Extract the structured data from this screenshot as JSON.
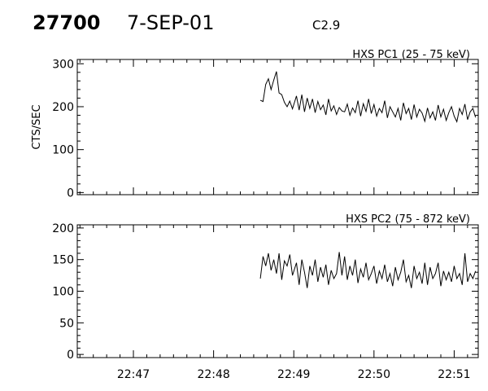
{
  "header": {
    "event_id": "27700",
    "date": "7-SEP-01",
    "flare_class": "C2.9"
  },
  "chart_data": [
    {
      "type": "line",
      "title": "HXS PC1 (25 - 75 keV)",
      "ylabel": "CTS/SEC",
      "xlabel": "",
      "xlim": [
        "22:46:18",
        "22:51:18"
      ],
      "ylim": [
        -5,
        310
      ],
      "yticks": [
        0,
        100,
        200,
        300
      ],
      "xticks": [
        "22:47",
        "22:48",
        "22:49",
        "22:50",
        "22:51"
      ],
      "grid": false,
      "series": [
        {
          "x": [
            "22:48:35",
            "22:48:37",
            "22:48:39",
            "22:48:41",
            "22:48:43",
            "22:48:45",
            "22:48:47",
            "22:48:49",
            "22:48:51",
            "22:48:53",
            "22:48:55",
            "22:48:57",
            "22:48:59",
            "22:49:02",
            "22:49:04",
            "22:49:06",
            "22:49:08",
            "22:49:10",
            "22:49:12",
            "22:49:14",
            "22:49:16",
            "22:49:18",
            "22:49:20",
            "22:49:22",
            "22:49:24",
            "22:49:26",
            "22:49:28",
            "22:49:30",
            "22:49:32",
            "22:49:34",
            "22:49:36",
            "22:49:38",
            "22:49:40",
            "22:49:42",
            "22:49:44",
            "22:49:46",
            "22:49:48",
            "22:49:50",
            "22:49:52",
            "22:49:54",
            "22:49:56",
            "22:49:58",
            "22:50:00",
            "22:50:02",
            "22:50:04",
            "22:50:06",
            "22:50:08",
            "22:50:10",
            "22:50:12",
            "22:50:14",
            "22:50:16",
            "22:50:18",
            "22:50:20",
            "22:50:22",
            "22:50:24",
            "22:50:26",
            "22:50:28",
            "22:50:30",
            "22:50:32",
            "22:50:34",
            "22:50:36",
            "22:50:38",
            "22:50:40",
            "22:50:42",
            "22:50:44",
            "22:50:46",
            "22:50:48",
            "22:50:50",
            "22:50:52",
            "22:50:54",
            "22:50:56",
            "22:50:58",
            "22:51:00",
            "22:51:02",
            "22:51:04",
            "22:51:06",
            "22:51:08",
            "22:51:10",
            "22:51:12",
            "22:51:14",
            "22:51:16"
          ],
          "values": [
            215,
            212,
            252,
            265,
            240,
            262,
            282,
            232,
            228,
            210,
            200,
            213,
            195,
            225,
            192,
            228,
            188,
            220,
            196,
            218,
            186,
            212,
            193,
            204,
            181,
            218,
            190,
            202,
            182,
            198,
            190,
            188,
            206,
            180,
            197,
            186,
            214,
            178,
            207,
            189,
            218,
            184,
            205,
            178,
            196,
            186,
            214,
            174,
            200,
            188,
            176,
            196,
            168,
            209,
            184,
            196,
            170,
            205,
            176,
            194,
            185,
            166,
            197,
            174,
            188,
            168,
            204,
            176,
            194,
            168,
            186,
            200,
            178,
            165,
            196,
            182,
            206,
            170,
            188,
            196,
            175
          ]
        }
      ]
    },
    {
      "type": "line",
      "title": "HXS PC2 (75 - 872 keV)",
      "ylabel": "",
      "xlabel": "",
      "xlim": [
        "22:46:18",
        "22:51:18"
      ],
      "ylim": [
        -5,
        205
      ],
      "yticks": [
        0,
        50,
        100,
        150,
        200
      ],
      "xticks": [
        "22:47",
        "22:48",
        "22:49",
        "22:50",
        "22:51"
      ],
      "grid": false,
      "series": [
        {
          "x": [
            "22:48:35",
            "22:48:37",
            "22:48:39",
            "22:48:41",
            "22:48:43",
            "22:48:45",
            "22:48:47",
            "22:48:49",
            "22:48:51",
            "22:48:53",
            "22:48:55",
            "22:48:57",
            "22:48:59",
            "22:49:02",
            "22:49:04",
            "22:49:06",
            "22:49:08",
            "22:49:10",
            "22:49:12",
            "22:49:14",
            "22:49:16",
            "22:49:18",
            "22:49:20",
            "22:49:22",
            "22:49:24",
            "22:49:26",
            "22:49:28",
            "22:49:30",
            "22:49:32",
            "22:49:34",
            "22:49:36",
            "22:49:38",
            "22:49:40",
            "22:49:42",
            "22:49:44",
            "22:49:46",
            "22:49:48",
            "22:49:50",
            "22:49:52",
            "22:49:54",
            "22:49:56",
            "22:49:58",
            "22:50:00",
            "22:50:02",
            "22:50:04",
            "22:50:06",
            "22:50:08",
            "22:50:10",
            "22:50:12",
            "22:50:14",
            "22:50:16",
            "22:50:18",
            "22:50:20",
            "22:50:22",
            "22:50:24",
            "22:50:26",
            "22:50:28",
            "22:50:30",
            "22:50:32",
            "22:50:34",
            "22:50:36",
            "22:50:38",
            "22:50:40",
            "22:50:42",
            "22:50:44",
            "22:50:46",
            "22:50:48",
            "22:50:50",
            "22:50:52",
            "22:50:54",
            "22:50:56",
            "22:50:58",
            "22:51:00",
            "22:51:02",
            "22:51:04",
            "22:51:06",
            "22:51:08",
            "22:51:10",
            "22:51:12",
            "22:51:14",
            "22:51:16"
          ],
          "values": [
            120,
            155,
            140,
            160,
            133,
            150,
            128,
            160,
            118,
            148,
            140,
            158,
            125,
            145,
            110,
            150,
            130,
            105,
            140,
            125,
            150,
            115,
            138,
            122,
            142,
            110,
            133,
            120,
            128,
            162,
            125,
            155,
            118,
            140,
            125,
            150,
            113,
            135,
            122,
            145,
            118,
            128,
            140,
            112,
            132,
            120,
            142,
            115,
            128,
            108,
            138,
            118,
            130,
            150,
            115,
            125,
            105,
            140,
            120,
            130,
            112,
            145,
            110,
            138,
            120,
            128,
            145,
            108,
            132,
            118,
            130,
            115,
            140,
            120,
            128,
            110,
            160,
            115,
            128,
            120,
            132
          ]
        }
      ]
    }
  ]
}
